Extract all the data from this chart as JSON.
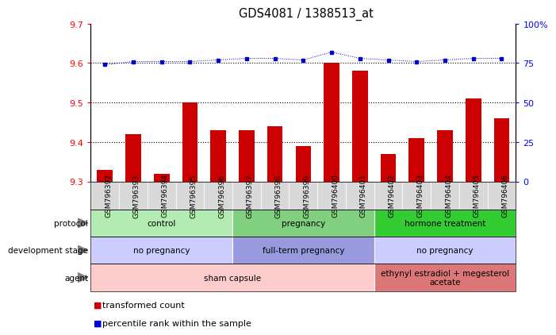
{
  "title": "GDS4081 / 1388513_at",
  "samples": [
    "GSM796392",
    "GSM796393",
    "GSM796394",
    "GSM796395",
    "GSM796396",
    "GSM796397",
    "GSM796398",
    "GSM796399",
    "GSM796400",
    "GSM796401",
    "GSM796402",
    "GSM796403",
    "GSM796404",
    "GSM796405",
    "GSM796406"
  ],
  "transformed_count": [
    9.33,
    9.42,
    9.32,
    9.5,
    9.43,
    9.43,
    9.44,
    9.39,
    9.6,
    9.58,
    9.37,
    9.41,
    9.43,
    9.51,
    9.46
  ],
  "percentile_rank": [
    74,
    76,
    76,
    76,
    77,
    78,
    78,
    77,
    82,
    78,
    77,
    76,
    77,
    78,
    78
  ],
  "ylim_left": [
    9.3,
    9.7
  ],
  "ylim_right": [
    0,
    100
  ],
  "yticks_left": [
    9.3,
    9.4,
    9.5,
    9.6,
    9.7
  ],
  "yticks_right": [
    0,
    25,
    50,
    75,
    100
  ],
  "bar_color": "#cc0000",
  "dot_color": "#0000cc",
  "bar_bottom": 9.3,
  "grid_values": [
    9.4,
    9.5,
    9.6
  ],
  "protocol_groups": [
    {
      "label": "control",
      "start": 0,
      "end": 4,
      "color": "#b3ecb3"
    },
    {
      "label": "pregnancy",
      "start": 5,
      "end": 9,
      "color": "#80d080"
    },
    {
      "label": "hormone treatment",
      "start": 10,
      "end": 14,
      "color": "#33cc33"
    }
  ],
  "dev_stage_groups": [
    {
      "label": "no pregnancy",
      "start": 0,
      "end": 4,
      "color": "#ccccff"
    },
    {
      "label": "full-term pregnancy",
      "start": 5,
      "end": 9,
      "color": "#9999dd"
    },
    {
      "label": "no pregnancy",
      "start": 10,
      "end": 14,
      "color": "#ccccff"
    }
  ],
  "agent_groups": [
    {
      "label": "sham capsule",
      "start": 0,
      "end": 9,
      "color": "#ffcccc"
    },
    {
      "label": "ethynyl estradiol + megesterol\nacetate",
      "start": 10,
      "end": 14,
      "color": "#dd7777"
    }
  ],
  "row_labels": [
    "protocol",
    "development stage",
    "agent"
  ],
  "legend_items": [
    {
      "label": "transformed count",
      "color": "#cc0000"
    },
    {
      "label": "percentile rank within the sample",
      "color": "#0000cc"
    }
  ],
  "background_color": "#ffffff",
  "xtick_bg": "#d8d8d8"
}
